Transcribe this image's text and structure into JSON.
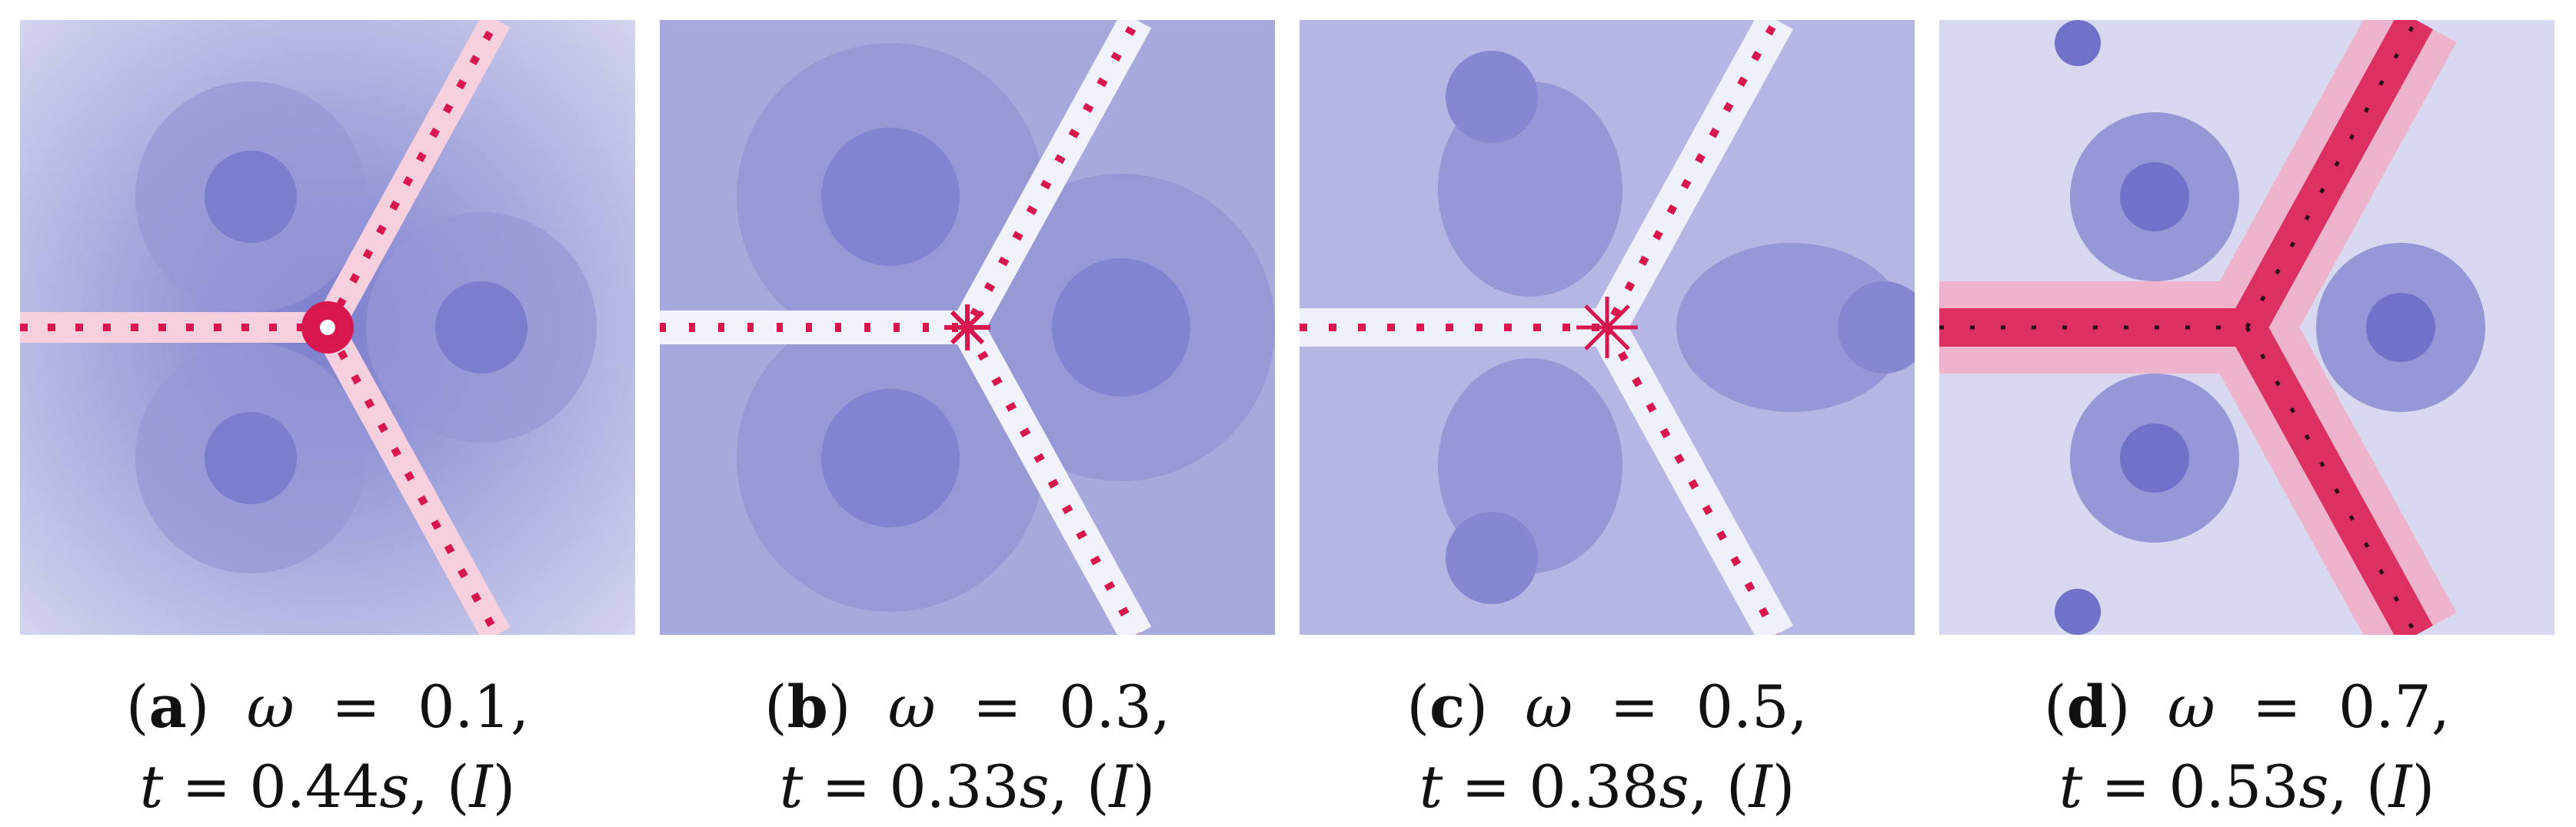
{
  "figure": {
    "panels": [
      {
        "label": "a",
        "omega": "0.1",
        "time": "0.44",
        "method": "I"
      },
      {
        "label": "b",
        "omega": "0.3",
        "time": "0.33",
        "method": "I"
      },
      {
        "label": "c",
        "omega": "0.5",
        "time": "0.38",
        "method": "I"
      },
      {
        "label": "d",
        "omega": "0.7",
        "time": "0.53",
        "method": "I"
      }
    ],
    "colors": {
      "basin_dark": "#6f72c8",
      "basin_mid": "#9a9cd9",
      "basin_light": "#d8d9f0",
      "julia_set": "#d8174f",
      "julia_pink": "#f4a7c0"
    }
  }
}
